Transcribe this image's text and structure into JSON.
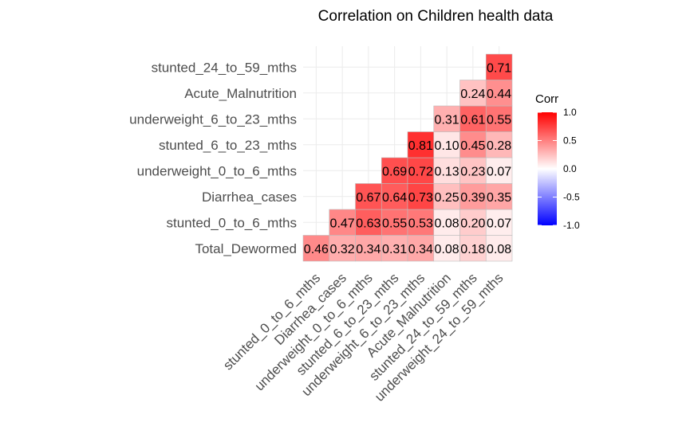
{
  "chart_data": {
    "type": "heatmap",
    "title": "Correlation on Children health data",
    "row_labels": [
      "Total_Dewormed",
      "stunted_0_to_6_mths",
      "Diarrhea_cases",
      "underweight_0_to_6_mths",
      "stunted_6_to_23_mths",
      "underweight_6_to_23_mths",
      "Acute_Malnutrition",
      "stunted_24_to_59_mths"
    ],
    "col_labels": [
      "stunted_0_to_6_mths",
      "Diarrhea_cases",
      "underweight_0_to_6_mths",
      "stunted_6_to_23_mths",
      "underweight_6_to_23_mths",
      "Acute_Malnutrition",
      "stunted_24_to_59_mths",
      "underweight_24_to_59_mths"
    ],
    "values": [
      [
        0.46,
        0.32,
        0.34,
        0.31,
        0.34,
        0.08,
        0.18,
        0.08
      ],
      [
        null,
        0.47,
        0.63,
        0.55,
        0.53,
        0.08,
        0.2,
        0.07
      ],
      [
        null,
        null,
        0.67,
        0.64,
        0.73,
        0.25,
        0.39,
        0.35
      ],
      [
        null,
        null,
        null,
        0.69,
        0.72,
        0.13,
        0.23,
        0.07
      ],
      [
        null,
        null,
        null,
        null,
        0.81,
        0.1,
        0.45,
        0.28
      ],
      [
        null,
        null,
        null,
        null,
        null,
        0.31,
        0.61,
        0.55
      ],
      [
        null,
        null,
        null,
        null,
        null,
        null,
        0.24,
        0.44
      ],
      [
        null,
        null,
        null,
        null,
        null,
        null,
        null,
        0.71
      ]
    ],
    "value_labels": [
      [
        "0.46",
        "0.32",
        "0.34",
        "0.31",
        "0.34",
        "0.08",
        "0.18",
        "0.08"
      ],
      [
        null,
        "0.47",
        "0.63",
        "0.55",
        "0.53",
        "0.08",
        "0.20",
        "0.07"
      ],
      [
        null,
        null,
        "0.67",
        "0.64",
        "0.73",
        "0.25",
        "0.39",
        "0.35"
      ],
      [
        null,
        null,
        null,
        "0.69",
        "0.72",
        "0.13",
        "0.23",
        "0.07"
      ],
      [
        null,
        null,
        null,
        null,
        "0.81",
        "0.10",
        "0.45",
        "0.28"
      ],
      [
        null,
        null,
        null,
        null,
        null,
        "0.31",
        "0.61",
        "0.55"
      ],
      [
        null,
        null,
        null,
        null,
        null,
        null,
        "0.24",
        "0.44"
      ],
      [
        null,
        null,
        null,
        null,
        null,
        null,
        null,
        "0.71"
      ]
    ],
    "legend": {
      "title": "Corr",
      "ticks": [
        "1.0",
        "0.5",
        "0.0",
        "-0.5",
        "-1.0"
      ],
      "tick_values": [
        1.0,
        0.5,
        0.0,
        -0.5,
        -1.0
      ],
      "range": [
        -1,
        1
      ],
      "placement": "right"
    },
    "colors": {
      "low": "#0000ff",
      "mid": "#ffffff",
      "high": "#ff0000"
    },
    "grid": true
  }
}
